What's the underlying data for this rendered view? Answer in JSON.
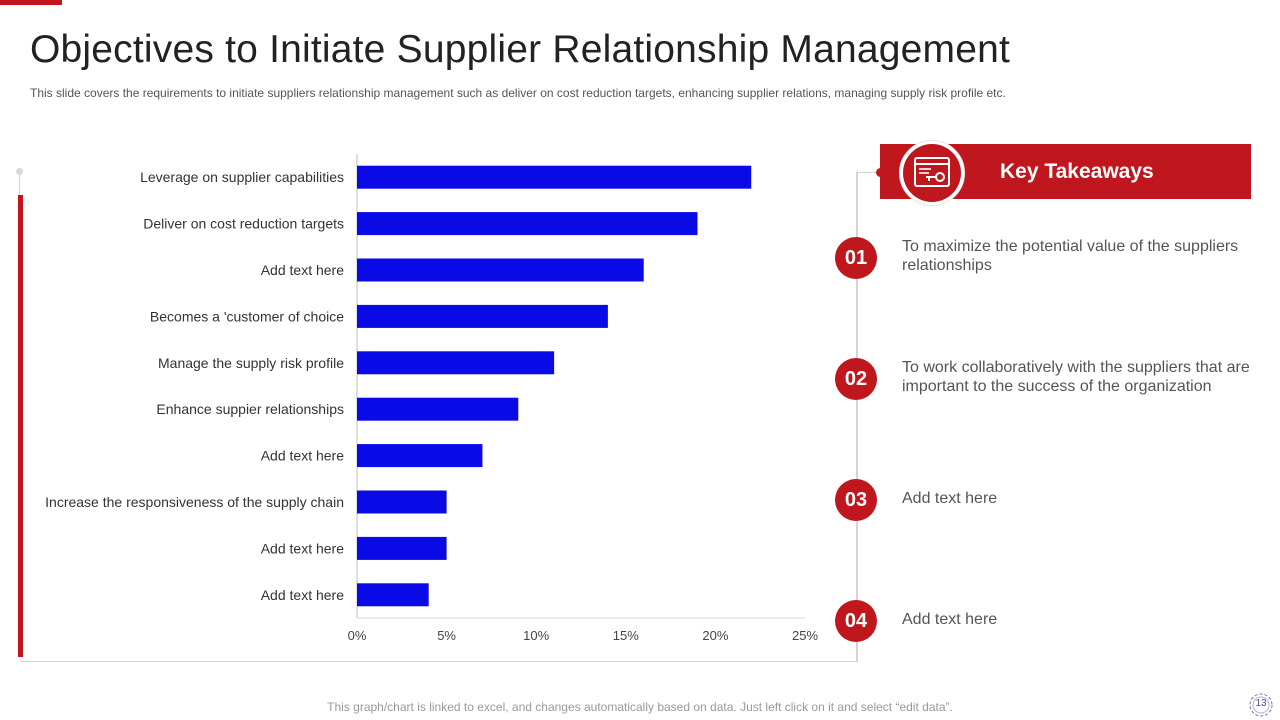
{
  "title": "Objectives to Initiate Supplier Relationship Management",
  "subtitle": "This slide covers the requirements to initiate suppliers relationship management such as deliver on cost reduction targets, enhancing supplier relations, managing supply risk profile etc.",
  "chart_data": {
    "type": "bar",
    "orientation": "horizontal",
    "categories": [
      "Leverage on supplier capabilities",
      "Deliver on cost reduction targets",
      "Add text here",
      "Becomes a 'customer of choice",
      "Manage the supply risk profile",
      "Enhance suppier relationships",
      "Add text here",
      "Increase the responsiveness of the supply chain",
      "Add text here",
      "Add text here"
    ],
    "values": [
      22,
      19,
      16,
      14,
      11,
      9,
      7,
      5,
      5,
      4
    ],
    "xlim": [
      0,
      25
    ],
    "xticks": [
      "0%",
      "5%",
      "10%",
      "15%",
      "20%",
      "25%"
    ],
    "bar_color": "#0a0ae6",
    "title": "",
    "xlabel": "",
    "ylabel": ""
  },
  "key_takeaways": {
    "title": "Key Takeaways",
    "icon": "key-card-icon",
    "items": [
      {
        "number": "01",
        "text": "To maximize the potential value of the suppliers relationships"
      },
      {
        "number": "02",
        "text": "To work collaboratively with the suppliers that are important to the success of the organization"
      },
      {
        "number": "03",
        "text": "Add text here"
      },
      {
        "number": "04",
        "text": "Add text here"
      }
    ]
  },
  "footer": "This graph/chart is linked to excel, and changes automatically based on data. Just left click on it and select “edit data”.",
  "page_number": "13",
  "colors": {
    "accent": "#c0161e",
    "bar": "#0a0ae6"
  }
}
